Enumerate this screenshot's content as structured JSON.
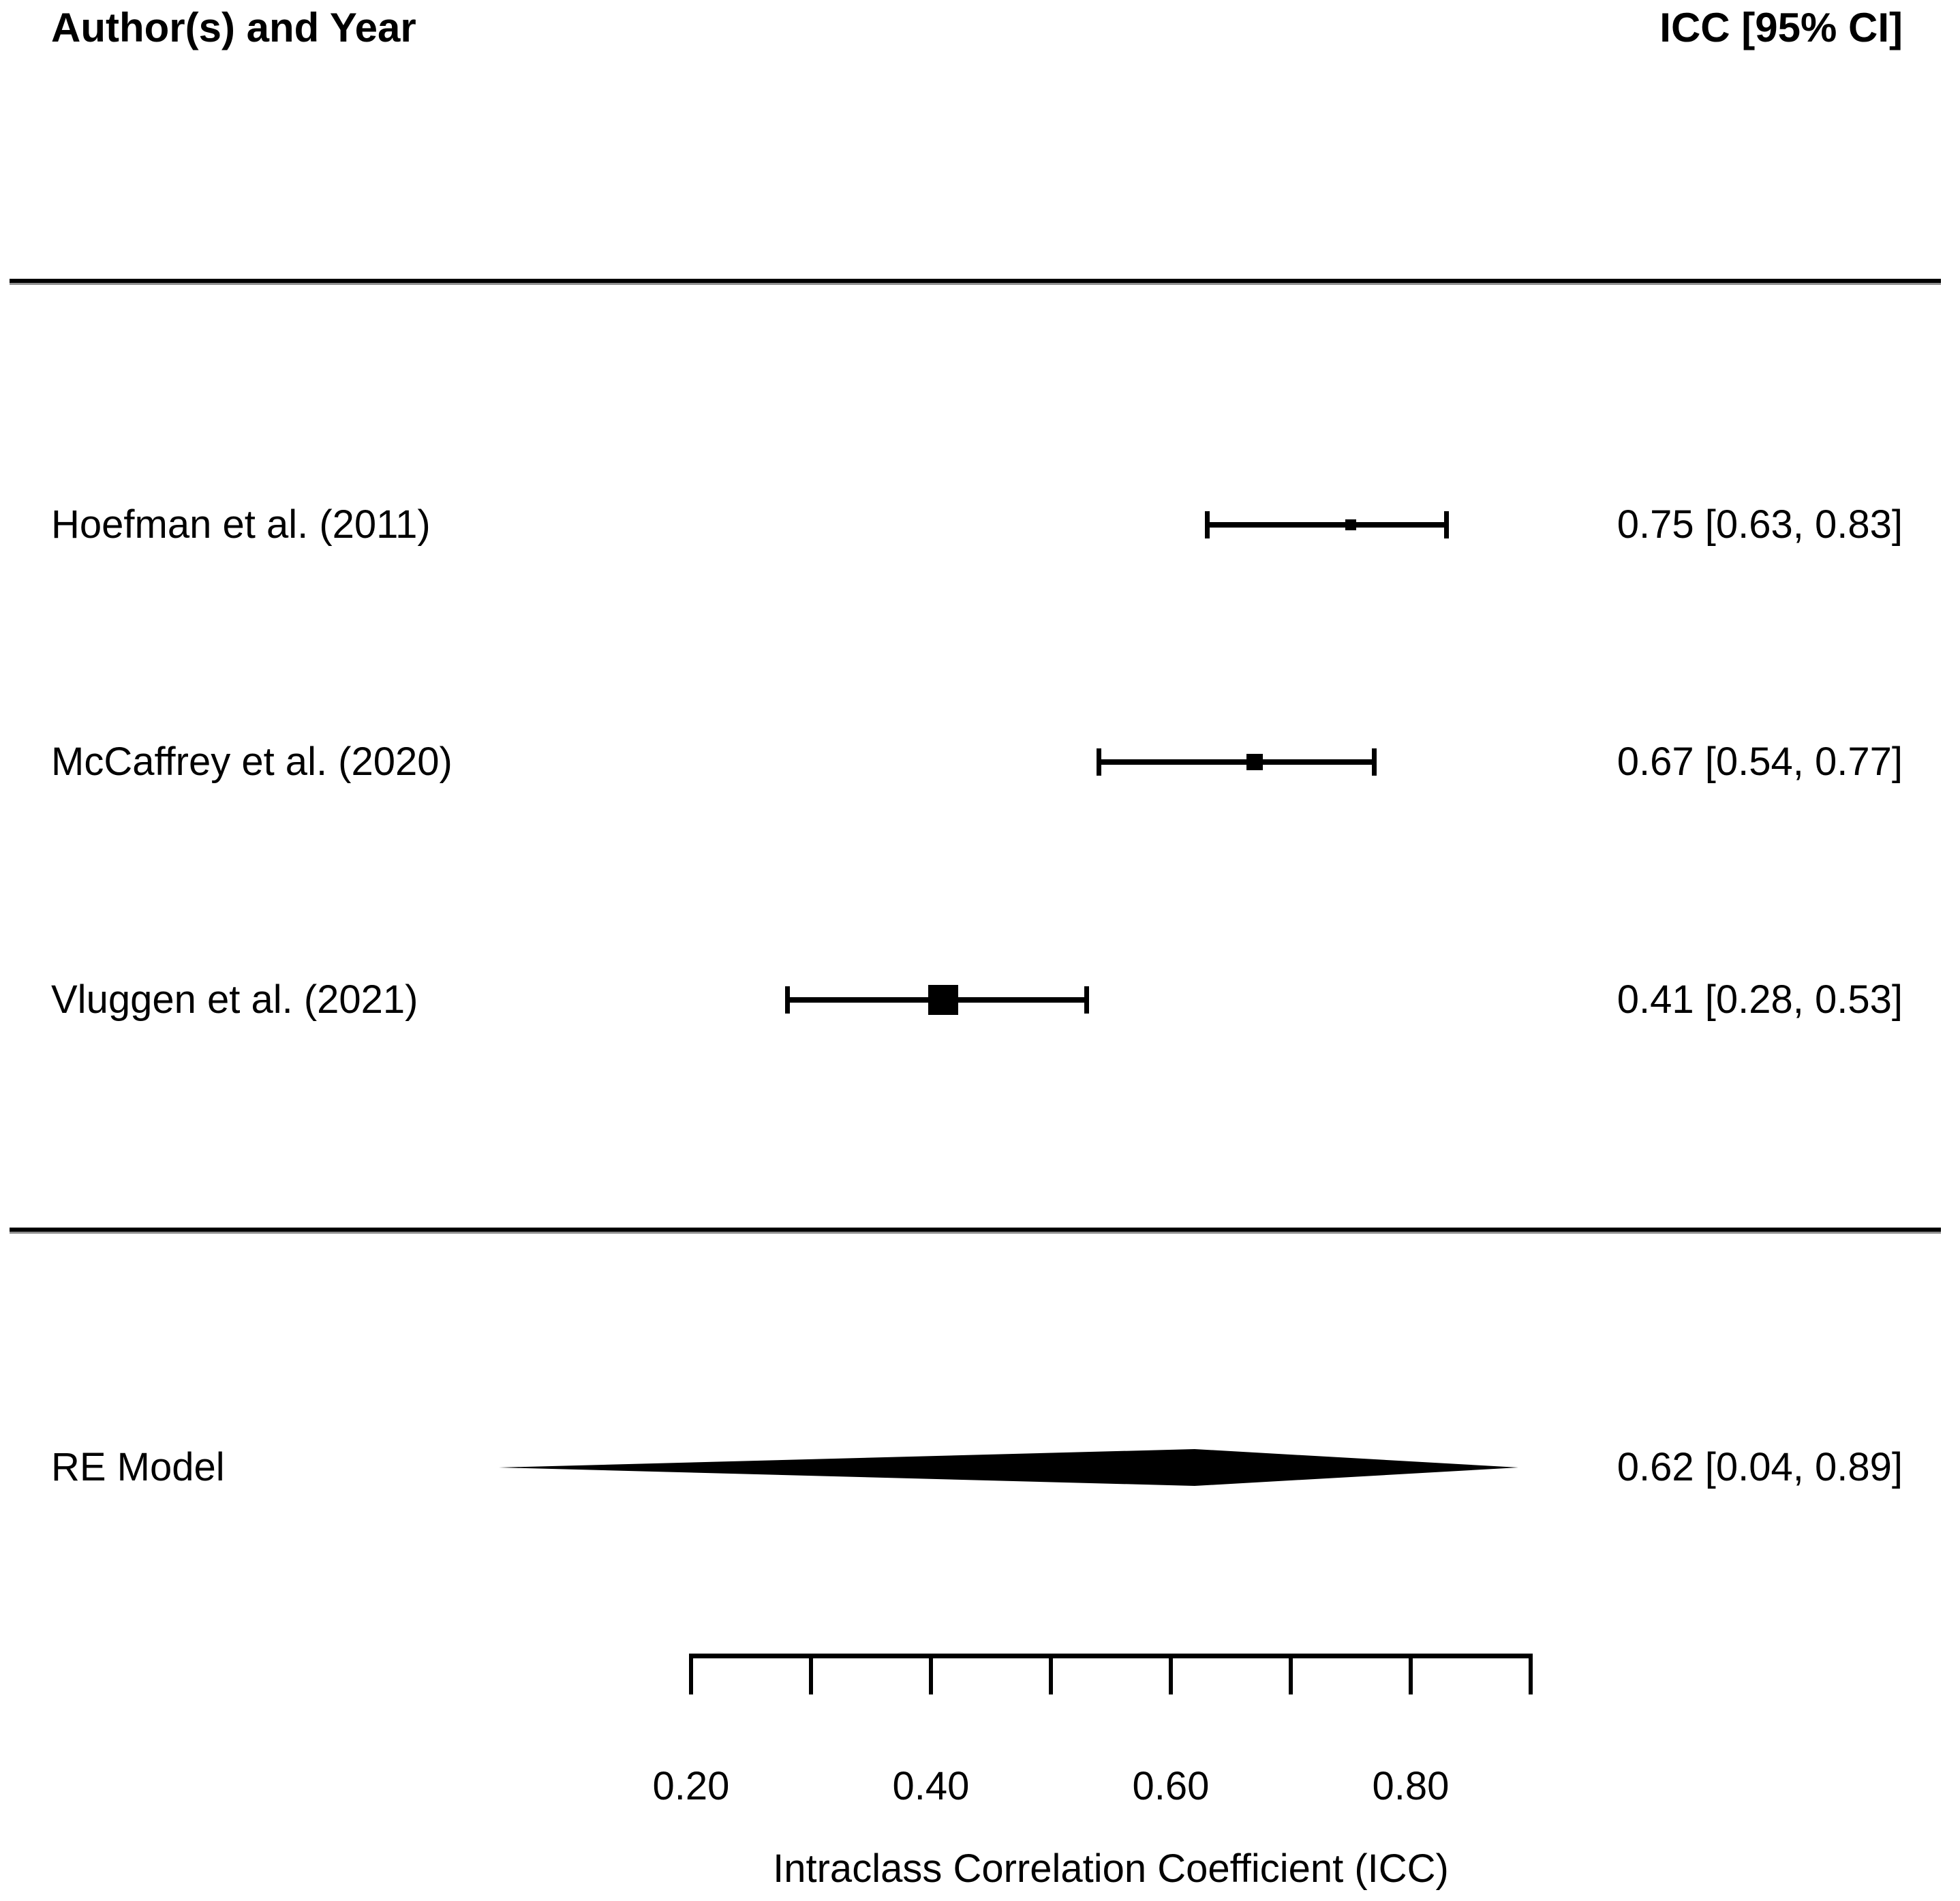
{
  "chart_data": {
    "type": "forest",
    "title": "",
    "columns": {
      "left_header": "Author(s) and Year",
      "right_header": "ICC [95% CI]"
    },
    "xlabel": "Intraclass Correlation Coefficient (ICC)",
    "xlim": [
      0.2,
      0.9
    ],
    "axis_ticks": [
      0.2,
      0.3,
      0.4,
      0.5,
      0.6,
      0.7,
      0.8,
      0.9
    ],
    "axis_tick_labels": [
      {
        "value": 0.2,
        "label": "0.20"
      },
      {
        "value": 0.4,
        "label": "0.40"
      },
      {
        "value": 0.6,
        "label": "0.60"
      },
      {
        "value": 0.8,
        "label": "0.80"
      }
    ],
    "studies": [
      {
        "label": "Hoefman et al. (2011)",
        "estimate": 0.75,
        "ci_lower": 0.63,
        "ci_upper": 0.83,
        "annotation": "0.75 [0.63, 0.83]",
        "marker_size": 16
      },
      {
        "label": "McCaffrey et al. (2020)",
        "estimate": 0.67,
        "ci_lower": 0.54,
        "ci_upper": 0.77,
        "annotation": "0.67 [0.54, 0.77]",
        "marker_size": 24
      },
      {
        "label": "Vluggen et al. (2021)",
        "estimate": 0.41,
        "ci_lower": 0.28,
        "ci_upper": 0.53,
        "annotation": "0.41 [0.28, 0.53]",
        "marker_size": 44
      }
    ],
    "summary": {
      "label": "RE Model",
      "estimate": 0.62,
      "ci_lower": 0.04,
      "ci_upper": 0.89,
      "annotation": "0.62 [0.04, 0.89]"
    },
    "grid": false,
    "legend_position": "none"
  },
  "colors": {
    "foreground": "#000000",
    "background": "#ffffff"
  }
}
